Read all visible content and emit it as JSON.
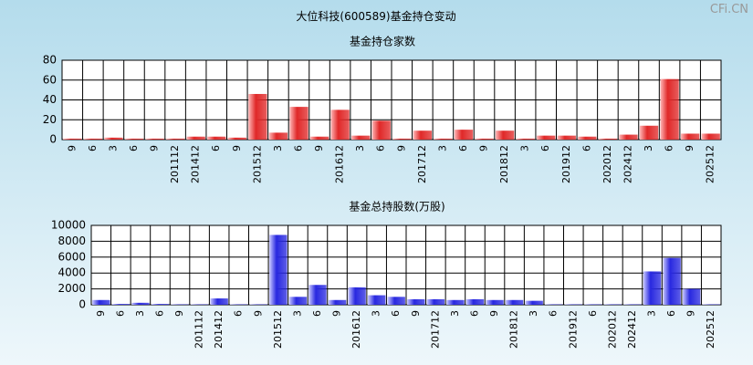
{
  "title": "大位科技(600589)基金持仓变动",
  "watermark": "CFi.CN",
  "chart_data": [
    {
      "type": "bar",
      "title": "基金持仓家数",
      "categories": [
        "9",
        "6",
        "3",
        "6",
        "9",
        "201112",
        "201412",
        "6",
        "9",
        "201512",
        "3",
        "6",
        "9",
        "201612",
        "3",
        "6",
        "9",
        "201712",
        "3",
        "6",
        "9",
        "201812",
        "3",
        "6",
        "201912",
        "6",
        "202012",
        "202412",
        "3",
        "6",
        "9",
        "202512"
      ],
      "values": [
        1,
        1,
        2,
        1,
        1,
        1,
        3,
        3,
        2,
        46,
        7,
        33,
        3,
        30,
        4,
        19,
        1,
        9,
        1,
        10,
        1,
        9,
        1,
        4,
        4,
        3,
        1,
        5,
        14,
        61,
        6,
        6
      ],
      "color": "#e02828",
      "ylim": [
        0,
        80
      ],
      "yticks": [
        0,
        20,
        40,
        60,
        80
      ],
      "grid": true
    },
    {
      "type": "bar",
      "title": "基金总持股数(万股)",
      "categories": [
        "9",
        "6",
        "3",
        "6",
        "9",
        "201112",
        "201412",
        "6",
        "9",
        "201512",
        "3",
        "6",
        "9",
        "201612",
        "3",
        "6",
        "9",
        "201712",
        "3",
        "6",
        "9",
        "201812",
        "3",
        "6",
        "201912",
        "6",
        "202012",
        "202412",
        "3",
        "6",
        "9",
        "202512"
      ],
      "values": [
        600,
        100,
        250,
        100,
        50,
        50,
        800,
        50,
        50,
        8800,
        1000,
        2500,
        600,
        2200,
        1200,
        1000,
        700,
        700,
        600,
        700,
        600,
        600,
        500,
        50,
        50,
        50,
        50,
        50,
        4200,
        5900,
        2000,
        50
      ],
      "color": "#2828e0",
      "ylim": [
        0,
        10000
      ],
      "yticks": [
        0,
        2000,
        4000,
        6000,
        8000,
        10000
      ],
      "grid": true
    }
  ]
}
